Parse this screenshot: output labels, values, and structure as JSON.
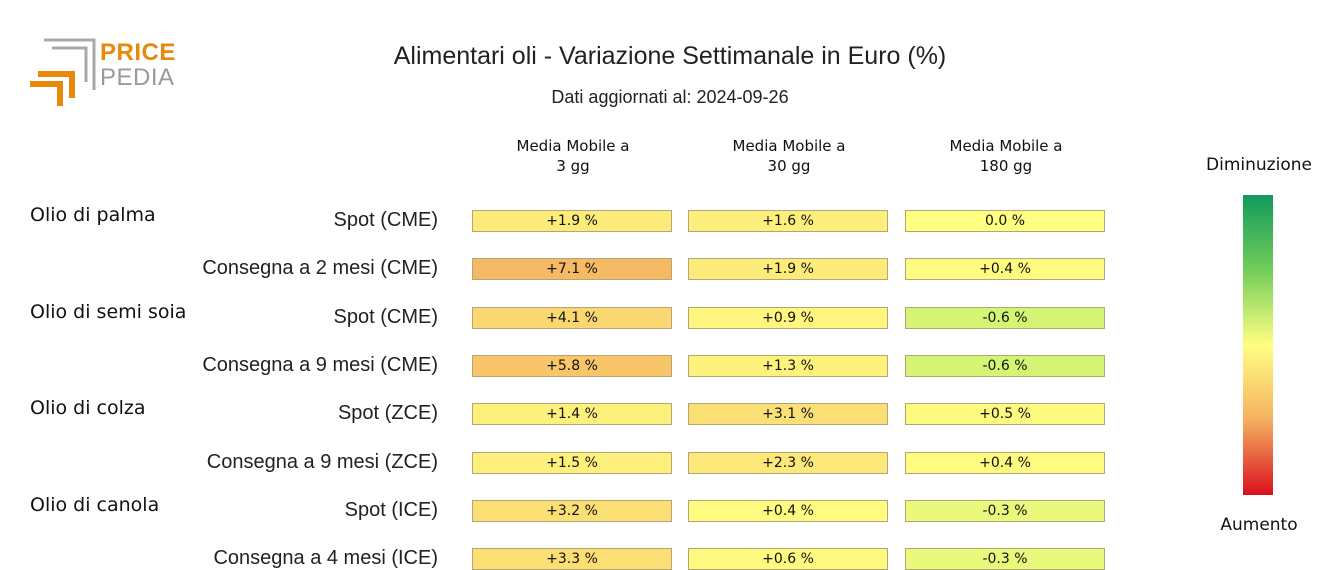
{
  "logo": {
    "word_top": "PRICE",
    "word_bottom": "PEDIA"
  },
  "chart_data": {
    "type": "table",
    "title": "Alimentari oli - Variazione Settimanale in Euro (%)",
    "subtitle": "Dati aggiornati al: 2024-09-26",
    "columns": [
      "Media Mobile a\n3 gg",
      "Media Mobile a\n30 gg",
      "Media Mobile a\n180 gg"
    ],
    "groups": [
      {
        "name": "Olio di palma",
        "rows": [
          {
            "label": "Spot (CME)",
            "values": [
              1.9,
              1.6,
              0.0
            ],
            "text": [
              "+1.9 %",
              "+1.6 %",
              "0.0 %"
            ]
          },
          {
            "label": "Consegna a 2 mesi (CME)",
            "values": [
              7.1,
              1.9,
              0.4
            ],
            "text": [
              "+7.1 %",
              "+1.9 %",
              "+0.4 %"
            ]
          }
        ]
      },
      {
        "name": "Olio di semi soia",
        "rows": [
          {
            "label": "Spot (CME)",
            "values": [
              4.1,
              0.9,
              -0.6
            ],
            "text": [
              "+4.1 %",
              "+0.9 %",
              "-0.6 %"
            ]
          },
          {
            "label": "Consegna a 9 mesi (CME)",
            "values": [
              5.8,
              1.3,
              -0.6
            ],
            "text": [
              "+5.8 %",
              "+1.3 %",
              "-0.6 %"
            ]
          }
        ]
      },
      {
        "name": "Olio di colza",
        "rows": [
          {
            "label": "Spot (ZCE)",
            "values": [
              1.4,
              3.1,
              0.5
            ],
            "text": [
              "+1.4 %",
              "+3.1 %",
              "+0.5 %"
            ]
          },
          {
            "label": "Consegna a 9 mesi (ZCE)",
            "values": [
              1.5,
              2.3,
              0.4
            ],
            "text": [
              "+1.5 %",
              "+2.3 %",
              "+0.4 %"
            ]
          }
        ]
      },
      {
        "name": "Olio di canola",
        "rows": [
          {
            "label": "Spot (ICE)",
            "values": [
              3.2,
              0.4,
              -0.3
            ],
            "text": [
              "+3.2 %",
              "+0.4 %",
              "-0.3 %"
            ]
          },
          {
            "label": "Consegna a 4 mesi (ICE)",
            "values": [
              3.3,
              0.6,
              -0.3
            ],
            "text": [
              "+3.3 %",
              "+0.6 %",
              "-0.3 %"
            ]
          }
        ]
      }
    ],
    "color_scale": {
      "top_label": "Diminuzione",
      "bottom_label": "Aumento",
      "colors": [
        "#119a5c",
        "#72cd5a",
        "#ffff82",
        "#f5b060",
        "#d8101e"
      ]
    }
  }
}
